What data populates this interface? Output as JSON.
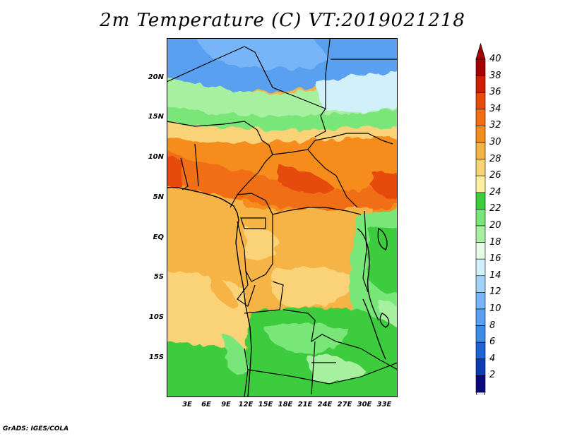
{
  "title": "2m Temperature (C) VT:2019021218",
  "credit": "GrADS: IGES/COLA",
  "map": {
    "lat_labels": [
      "20N",
      "15N",
      "10N",
      "5N",
      "EQ",
      "5S",
      "10S",
      "15S"
    ],
    "lon_labels": [
      "3E",
      "6E",
      "9E",
      "12E",
      "15E",
      "18E",
      "21E",
      "24E",
      "27E",
      "30E",
      "33E"
    ]
  },
  "colorbar": {
    "levels": [
      "2",
      "4",
      "6",
      "8",
      "10",
      "12",
      "14",
      "16",
      "18",
      "20",
      "22",
      "24",
      "26",
      "28",
      "30",
      "32",
      "34",
      "36",
      "38",
      "40"
    ],
    "colors": [
      "#0a0a7a",
      "#0a3cb4",
      "#1e64d2",
      "#3c8ce6",
      "#5aa0f0",
      "#78b4f8",
      "#a0d2fa",
      "#d2f0fa",
      "#e6fae6",
      "#a6f0a0",
      "#78e678",
      "#3ccc3c",
      "#fff0a0",
      "#fad278",
      "#f6b446",
      "#f58c1e",
      "#f06e14",
      "#e64b0a",
      "#d21e00",
      "#a50000"
    ],
    "under_color": "#e8e8ff",
    "over_color": "#a50000"
  }
}
